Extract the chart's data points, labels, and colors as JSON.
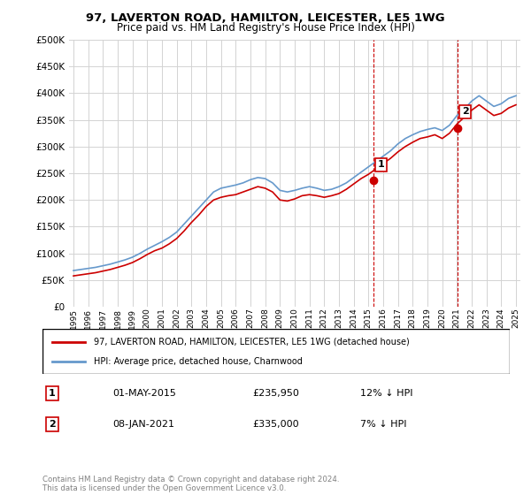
{
  "title": "97, LAVERTON ROAD, HAMILTON, LEICESTER, LE5 1WG",
  "subtitle": "Price paid vs. HM Land Registry's House Price Index (HPI)",
  "legend_label1": "97, LAVERTON ROAD, HAMILTON, LEICESTER, LE5 1WG (detached house)",
  "legend_label2": "HPI: Average price, detached house, Charnwood",
  "annotation1_label": "1",
  "annotation1_date": "01-MAY-2015",
  "annotation1_price": "£235,950",
  "annotation1_hpi": "12% ↓ HPI",
  "annotation2_label": "2",
  "annotation2_date": "08-JAN-2021",
  "annotation2_price": "£335,000",
  "annotation2_hpi": "7% ↓ HPI",
  "footer": "Contains HM Land Registry data © Crown copyright and database right 2024.\nThis data is licensed under the Open Government Licence v3.0.",
  "line1_color": "#cc0000",
  "line2_color": "#6699cc",
  "marker1_color": "#cc0000",
  "marker2_color": "#cc0000",
  "vline_color": "#cc0000",
  "annotation_box_color": "#cc0000",
  "ylim": [
    0,
    500000
  ],
  "yticks": [
    0,
    50000,
    100000,
    150000,
    200000,
    250000,
    300000,
    350000,
    400000,
    450000,
    500000
  ],
  "year_start": 1995,
  "year_end": 2025,
  "sale1_year": 2015.33,
  "sale1_price": 235950,
  "sale2_year": 2021.03,
  "sale2_price": 335000,
  "hpi_years": [
    1995,
    1995.5,
    1996,
    1996.5,
    1997,
    1997.5,
    1998,
    1998.5,
    1999,
    1999.5,
    2000,
    2000.5,
    2001,
    2001.5,
    2002,
    2002.5,
    2003,
    2003.5,
    2004,
    2004.5,
    2005,
    2005.5,
    2006,
    2006.5,
    2007,
    2007.5,
    2008,
    2008.5,
    2009,
    2009.5,
    2010,
    2010.5,
    2011,
    2011.5,
    2012,
    2012.5,
    2013,
    2013.5,
    2014,
    2014.5,
    2015,
    2015.5,
    2016,
    2016.5,
    2017,
    2017.5,
    2018,
    2018.5,
    2019,
    2019.5,
    2020,
    2020.5,
    2021,
    2021.5,
    2022,
    2022.5,
    2023,
    2023.5,
    2024,
    2024.5,
    2025
  ],
  "hpi_values": [
    68000,
    70000,
    72000,
    74000,
    77000,
    80000,
    84000,
    88000,
    93000,
    100000,
    108000,
    115000,
    122000,
    130000,
    140000,
    155000,
    170000,
    185000,
    200000,
    215000,
    222000,
    225000,
    228000,
    232000,
    238000,
    242000,
    240000,
    232000,
    218000,
    215000,
    218000,
    222000,
    225000,
    222000,
    218000,
    220000,
    225000,
    232000,
    242000,
    252000,
    262000,
    272000,
    282000,
    292000,
    305000,
    315000,
    322000,
    328000,
    332000,
    335000,
    330000,
    340000,
    358000,
    370000,
    385000,
    395000,
    385000,
    375000,
    380000,
    390000,
    395000
  ],
  "price_years": [
    1995,
    1995.5,
    1996,
    1996.5,
    1997,
    1997.5,
    1998,
    1998.5,
    1999,
    1999.5,
    2000,
    2000.5,
    2001,
    2001.5,
    2002,
    2002.5,
    2003,
    2003.5,
    2004,
    2004.5,
    2005,
    2005.5,
    2006,
    2006.5,
    2007,
    2007.5,
    2008,
    2008.5,
    2009,
    2009.5,
    2010,
    2010.5,
    2011,
    2011.5,
    2012,
    2012.5,
    2013,
    2013.5,
    2014,
    2014.5,
    2015,
    2015.5,
    2016,
    2016.5,
    2017,
    2017.5,
    2018,
    2018.5,
    2019,
    2019.5,
    2020,
    2020.5,
    2021,
    2021.5,
    2022,
    2022.5,
    2023,
    2023.5,
    2024,
    2024.5,
    2025
  ],
  "price_values": [
    58000,
    60000,
    62000,
    64000,
    67000,
    70000,
    74000,
    78000,
    83000,
    90000,
    98000,
    105000,
    110000,
    118000,
    128000,
    142000,
    158000,
    172000,
    188000,
    200000,
    205000,
    208000,
    210000,
    215000,
    220000,
    225000,
    222000,
    215000,
    200000,
    198000,
    202000,
    208000,
    210000,
    208000,
    205000,
    208000,
    212000,
    220000,
    230000,
    240000,
    248000,
    258000,
    268000,
    278000,
    290000,
    300000,
    308000,
    315000,
    318000,
    322000,
    315000,
    325000,
    342000,
    355000,
    368000,
    378000,
    368000,
    358000,
    362000,
    372000,
    378000
  ]
}
